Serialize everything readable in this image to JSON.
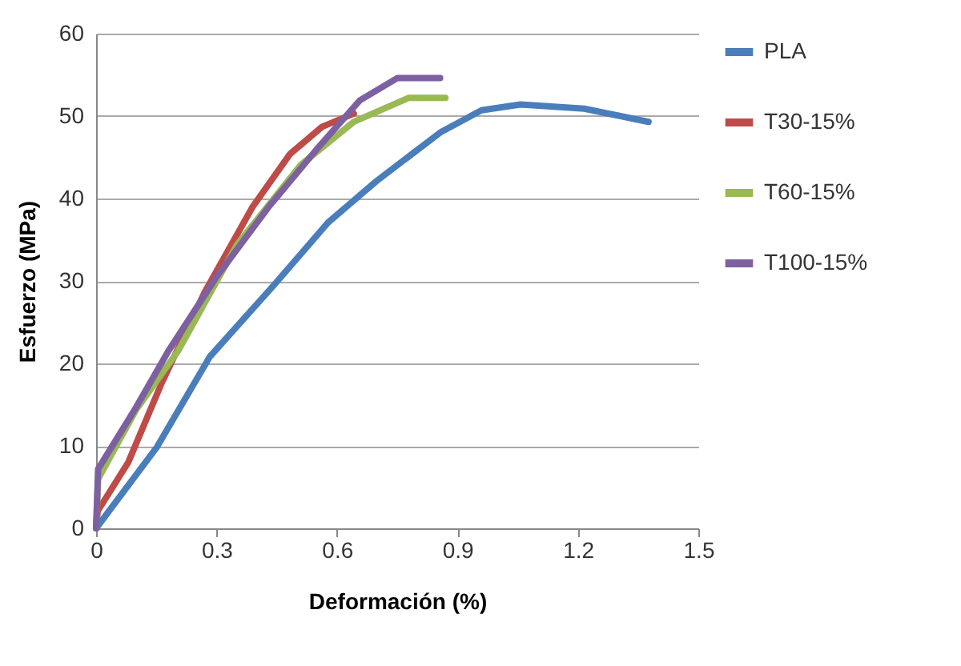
{
  "chart_data": {
    "type": "line",
    "xlabel": "Deformación (%)",
    "ylabel": "Esfuerzo (MPa)",
    "xlim": [
      0,
      1.5
    ],
    "xticks": [
      0,
      0.3,
      0.6,
      0.9,
      1.2,
      1.5
    ],
    "ylim": [
      0,
      60
    ],
    "yticks": [
      0,
      10,
      20,
      30,
      40,
      50,
      60
    ],
    "grid": "y",
    "legend": "right",
    "marker": "none",
    "line_style": "solid",
    "series": [
      {
        "name": "PLA",
        "color": "#4a7ebb",
        "x": [
          0,
          0.152,
          0.283,
          0.443,
          0.578,
          0.698,
          0.857,
          0.96,
          1.057,
          1.216,
          1.376
        ],
        "values": [
          0,
          9.9,
          20.8,
          29.5,
          37.1,
          42.1,
          48,
          50.7,
          51.4,
          50.9,
          49.3
        ]
      },
      {
        "name": "T30-15%",
        "color": "#be4b48",
        "x": [
          0,
          0.004,
          0.08,
          0.164,
          0.27,
          0.39,
          0.483,
          0.563,
          0.642
        ],
        "values": [
          0,
          2.1,
          8,
          17.7,
          28.6,
          39,
          45.4,
          48.7,
          50.3
        ]
      },
      {
        "name": "T60-15%",
        "color": "#98b954",
        "x": [
          0,
          0.005,
          0.1,
          0.204,
          0.351,
          0.51,
          0.642,
          0.778,
          0.87
        ],
        "values": [
          0,
          6,
          14.4,
          21.5,
          34.4,
          44.1,
          49.3,
          52.2,
          52.2
        ]
      },
      {
        "name": "T100-15%",
        "color": "#7d60a0",
        "x": [
          0,
          0.005,
          0.1,
          0.18,
          0.3,
          0.43,
          0.55,
          0.657,
          0.75,
          0.857
        ],
        "values": [
          0,
          7.2,
          14.7,
          21.5,
          30.5,
          39,
          46,
          51.9,
          54.6,
          54.6
        ]
      }
    ]
  }
}
